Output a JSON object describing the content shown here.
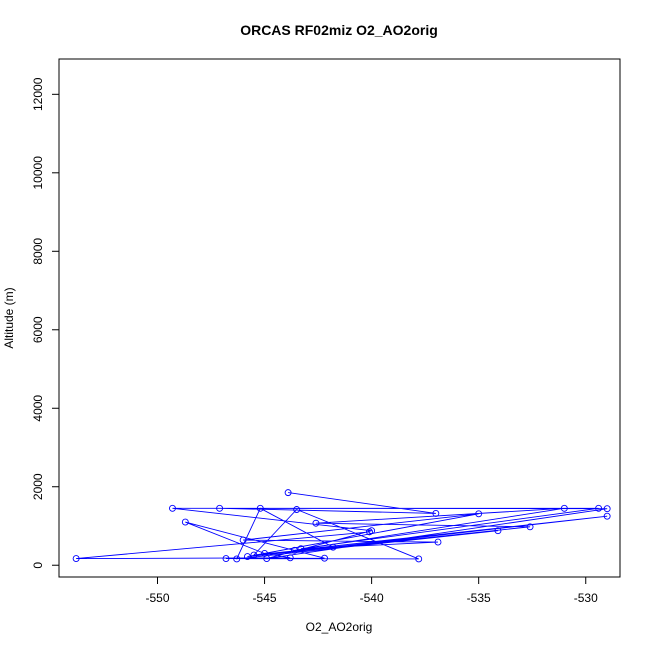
{
  "chart_data": {
    "type": "line",
    "title": "ORCAS RF02miz O2_AO2orig",
    "xlabel": "O2_AO2orig",
    "ylabel": "Altitude (m)",
    "xlim": [
      -554.6,
      -528.4
    ],
    "ylim": [
      -300,
      12900
    ],
    "x_ticks": [
      -550,
      -545,
      -540,
      -535,
      -530
    ],
    "x_tick_labels": [
      "-550",
      "-545",
      "-540",
      "-535",
      "-530"
    ],
    "y_ticks": [
      0,
      2000,
      4000,
      6000,
      8000,
      10000,
      12000
    ],
    "y_tick_labels": [
      "0",
      "2000",
      "4000",
      "6000",
      "8000",
      "10000",
      "12000"
    ],
    "grid": false,
    "legend": "none",
    "markers": "open-circle",
    "series": [
      {
        "color": "#0000ff",
        "points": [
          {
            "x": -543.9,
            "y": 1850
          },
          {
            "x": -537.0,
            "y": 1320
          },
          {
            "x": -547.1,
            "y": 1450
          },
          {
            "x": -529.0,
            "y": 1440
          },
          {
            "x": -544.9,
            "y": 170
          },
          {
            "x": -540.0,
            "y": 880
          },
          {
            "x": -549.3,
            "y": 1450
          },
          {
            "x": -529.4,
            "y": 1450
          },
          {
            "x": -543.3,
            "y": 420
          },
          {
            "x": -536.9,
            "y": 590
          },
          {
            "x": -546.0,
            "y": 640
          },
          {
            "x": -535.0,
            "y": 1310
          },
          {
            "x": -545.8,
            "y": 220
          },
          {
            "x": -532.6,
            "y": 980
          },
          {
            "x": -542.6,
            "y": 1070
          },
          {
            "x": -531.0,
            "y": 1450
          },
          {
            "x": -543.6,
            "y": 380
          },
          {
            "x": -529.0,
            "y": 1250
          },
          {
            "x": -541.8,
            "y": 460
          },
          {
            "x": -545.2,
            "y": 1450
          },
          {
            "x": -546.3,
            "y": 160
          },
          {
            "x": -534.1,
            "y": 880
          },
          {
            "x": -545.5,
            "y": 260
          },
          {
            "x": -543.5,
            "y": 1420
          },
          {
            "x": -537.8,
            "y": 160
          },
          {
            "x": -546.8,
            "y": 170
          },
          {
            "x": -542.2,
            "y": 180
          },
          {
            "x": -548.7,
            "y": 1100
          },
          {
            "x": -545.0,
            "y": 300
          },
          {
            "x": -543.8,
            "y": 190
          },
          {
            "x": -553.8,
            "y": 170
          },
          {
            "x": -540.1,
            "y": 850
          }
        ]
      }
    ]
  }
}
